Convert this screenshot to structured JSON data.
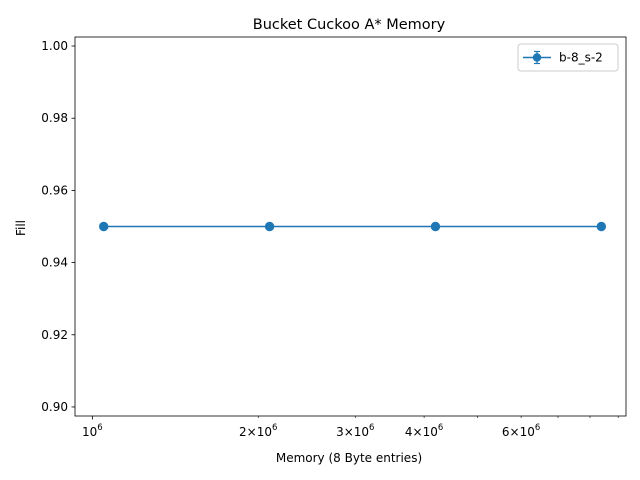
{
  "chart_data": {
    "type": "line",
    "title": "Bucket Cuckoo A* Memory",
    "xlabel": "Memory (8 Byte entries)",
    "ylabel": "Fill",
    "xscale": "log",
    "xlim": [
      930000,
      9300000
    ],
    "ylim": [
      0.8975,
      1.0025
    ],
    "x_ticks_major": [
      {
        "value": 1000000,
        "mantissa": "",
        "exp": "6"
      }
    ],
    "x_ticks_minor_labeled": [
      {
        "value": 2000000,
        "mantissa": "2",
        "exp": "6"
      },
      {
        "value": 3000000,
        "mantissa": "3",
        "exp": "6"
      },
      {
        "value": 4000000,
        "mantissa": "4",
        "exp": "6"
      },
      {
        "value": 6000000,
        "mantissa": "6",
        "exp": "6"
      }
    ],
    "x_ticks_minor_unlabeled": [
      5000000,
      7000000,
      8000000,
      9000000
    ],
    "y_ticks": [
      "0.90",
      "0.92",
      "0.94",
      "0.96",
      "0.98",
      "1.00"
    ],
    "grid": false,
    "legend_position": "upper right",
    "series": [
      {
        "name": "b-8_s-2",
        "color": "#1f77b4",
        "marker": "circle",
        "errorbars": true,
        "x": [
          1048576,
          2097152,
          4194304,
          8388608
        ],
        "y": [
          0.95,
          0.95,
          0.95,
          0.95
        ]
      }
    ]
  }
}
